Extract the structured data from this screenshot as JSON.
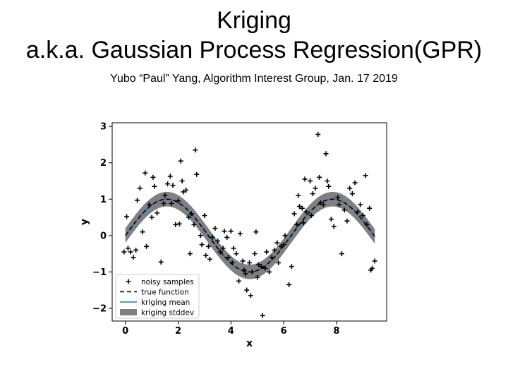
{
  "slide": {
    "title_line1": "Kriging",
    "title_line2": "a.k.a. Gaussian Process Regression(GPR)",
    "subtitle": "Yubo “Paul” Yang, Algorithm Interest Group, Jan. 17 2019"
  },
  "chart_data": {
    "type": "scatter",
    "title": "",
    "xlabel": "x",
    "ylabel": "y",
    "xlim": [
      -0.5,
      9.9
    ],
    "ylim": [
      -2.35,
      3.1
    ],
    "xticks": [
      0,
      2,
      4,
      6,
      8
    ],
    "yticks": [
      3,
      2,
      1,
      0,
      -1,
      -2
    ],
    "grid": false,
    "legend_position": "lower-left",
    "legend": [
      {
        "label": "noisy samples",
        "style": "marker-plus",
        "color": "#000000"
      },
      {
        "label": "true function",
        "style": "dashed-line",
        "color": "#000000"
      },
      {
        "label": "kriging mean",
        "style": "solid-line",
        "color": "#1f77b4"
      },
      {
        "label": "kriging stddev",
        "style": "band",
        "color": "#808080"
      }
    ],
    "true_function": "sin(x)",
    "curve_x_range": [
      0,
      9.45
    ],
    "kriging_stddev": 0.2,
    "samples": [
      [
        -0.05,
        -0.45
      ],
      [
        0.05,
        0.52
      ],
      [
        0.1,
        -0.35
      ],
      [
        0.2,
        -0.45
      ],
      [
        0.3,
        -0.6
      ],
      [
        0.4,
        -0.4
      ],
      [
        0.45,
        0.97
      ],
      [
        0.55,
        1.3
      ],
      [
        0.65,
        0.1
      ],
      [
        0.75,
        1.72
      ],
      [
        0.8,
        -0.3
      ],
      [
        0.9,
        0.85
      ],
      [
        1.0,
        0.5
      ],
      [
        1.05,
        1.6
      ],
      [
        1.1,
        1.35
      ],
      [
        1.2,
        0.62
      ],
      [
        1.35,
        -0.73
      ],
      [
        1.45,
        0.88
      ],
      [
        1.5,
        1.1
      ],
      [
        1.6,
        1.42
      ],
      [
        1.7,
        1.63
      ],
      [
        1.75,
        0.88
      ],
      [
        1.8,
        1.38
      ],
      [
        1.9,
        0.3
      ],
      [
        2.0,
        0.95
      ],
      [
        2.05,
        0.32
      ],
      [
        2.1,
        2.05
      ],
      [
        2.15,
        1.5
      ],
      [
        2.2,
        1.2
      ],
      [
        2.3,
        1.25
      ],
      [
        2.4,
        0.5
      ],
      [
        2.45,
        -0.5
      ],
      [
        2.5,
        0.6
      ],
      [
        2.6,
        0.3
      ],
      [
        2.65,
        2.35
      ],
      [
        2.7,
        1.68
      ],
      [
        2.85,
        0.0
      ],
      [
        2.9,
        -0.25
      ],
      [
        3.0,
        0.55
      ],
      [
        3.05,
        -0.55
      ],
      [
        3.15,
        -0.3
      ],
      [
        3.2,
        -0.65
      ],
      [
        3.3,
        -0.05
      ],
      [
        3.4,
        0.2
      ],
      [
        3.5,
        -0.15
      ],
      [
        3.6,
        -0.45
      ],
      [
        3.7,
        -0.35
      ],
      [
        3.75,
        0.12
      ],
      [
        3.85,
        -0.05
      ],
      [
        3.9,
        -0.6
      ],
      [
        4.0,
        0.12
      ],
      [
        4.05,
        -0.75
      ],
      [
        4.1,
        -0.35
      ],
      [
        4.2,
        -0.5
      ],
      [
        4.3,
        -1.25
      ],
      [
        4.35,
        0.05
      ],
      [
        4.45,
        -0.7
      ],
      [
        4.5,
        -0.95
      ],
      [
        4.55,
        -1.05
      ],
      [
        4.6,
        -1.5
      ],
      [
        4.7,
        -0.75
      ],
      [
        4.75,
        -1.65
      ],
      [
        4.8,
        -1.0
      ],
      [
        4.9,
        -0.5
      ],
      [
        4.95,
        0.1
      ],
      [
        5.0,
        -1.15
      ],
      [
        5.05,
        -0.8
      ],
      [
        5.15,
        -0.85
      ],
      [
        5.2,
        -2.2
      ],
      [
        5.3,
        -0.9
      ],
      [
        5.35,
        -0.45
      ],
      [
        5.45,
        -1.0
      ],
      [
        5.55,
        -0.6
      ],
      [
        5.65,
        -0.4
      ],
      [
        5.75,
        -0.2
      ],
      [
        5.8,
        -0.75
      ],
      [
        5.9,
        -0.3
      ],
      [
        6.0,
        -0.25
      ],
      [
        6.05,
        0.0
      ],
      [
        6.2,
        -1.35
      ],
      [
        6.3,
        -0.85
      ],
      [
        6.4,
        0.6
      ],
      [
        6.5,
        0.3
      ],
      [
        6.55,
        1.1
      ],
      [
        6.6,
        0.8
      ],
      [
        6.7,
        0.75
      ],
      [
        6.75,
        0.35
      ],
      [
        6.8,
        1.55
      ],
      [
        6.85,
        0.65
      ],
      [
        7.0,
        1.5
      ],
      [
        7.05,
        0.55
      ],
      [
        7.1,
        1.15
      ],
      [
        7.2,
        1.3
      ],
      [
        7.3,
        2.78
      ],
      [
        7.35,
        1.6
      ],
      [
        7.4,
        0.9
      ],
      [
        7.5,
        0.85
      ],
      [
        7.6,
        2.25
      ],
      [
        7.65,
        1.5
      ],
      [
        7.7,
        1.35
      ],
      [
        7.8,
        0.45
      ],
      [
        7.9,
        0.25
      ],
      [
        8.05,
        1.05
      ],
      [
        8.1,
        0.85
      ],
      [
        8.2,
        -0.5
      ],
      [
        8.3,
        0.7
      ],
      [
        8.4,
        0.4
      ],
      [
        8.5,
        1.3
      ],
      [
        8.6,
        1.15
      ],
      [
        8.7,
        1.45
      ],
      [
        8.8,
        0.65
      ],
      [
        8.9,
        0.85
      ],
      [
        9.0,
        0.55
      ],
      [
        9.1,
        1.65
      ],
      [
        9.15,
        0.3
      ],
      [
        9.25,
        0.75
      ],
      [
        9.3,
        -0.95
      ],
      [
        9.35,
        -0.9
      ],
      [
        9.45,
        -0.7
      ]
    ]
  }
}
